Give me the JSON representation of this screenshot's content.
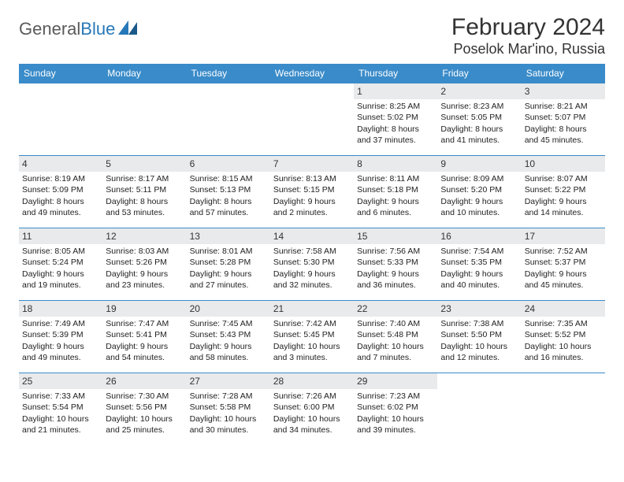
{
  "logo": {
    "word1": "General",
    "word2": "Blue"
  },
  "header": {
    "title": "February 2024",
    "location": "Poselok Mar'ino, Russia"
  },
  "colors": {
    "header_bg": "#3a8bc9",
    "header_text": "#ffffff",
    "daynum_bg": "#e9eaeb",
    "border": "#3a8bc9",
    "logo_gray": "#5a5a5a",
    "logo_blue": "#2778b8"
  },
  "weekdays": [
    "Sunday",
    "Monday",
    "Tuesday",
    "Wednesday",
    "Thursday",
    "Friday",
    "Saturday"
  ],
  "cells": [
    {
      "day": "",
      "sunrise": "",
      "sunset": "",
      "daylight": ""
    },
    {
      "day": "",
      "sunrise": "",
      "sunset": "",
      "daylight": ""
    },
    {
      "day": "",
      "sunrise": "",
      "sunset": "",
      "daylight": ""
    },
    {
      "day": "",
      "sunrise": "",
      "sunset": "",
      "daylight": ""
    },
    {
      "day": "1",
      "sunrise": "Sunrise: 8:25 AM",
      "sunset": "Sunset: 5:02 PM",
      "daylight": "Daylight: 8 hours and 37 minutes."
    },
    {
      "day": "2",
      "sunrise": "Sunrise: 8:23 AM",
      "sunset": "Sunset: 5:05 PM",
      "daylight": "Daylight: 8 hours and 41 minutes."
    },
    {
      "day": "3",
      "sunrise": "Sunrise: 8:21 AM",
      "sunset": "Sunset: 5:07 PM",
      "daylight": "Daylight: 8 hours and 45 minutes."
    },
    {
      "day": "4",
      "sunrise": "Sunrise: 8:19 AM",
      "sunset": "Sunset: 5:09 PM",
      "daylight": "Daylight: 8 hours and 49 minutes."
    },
    {
      "day": "5",
      "sunrise": "Sunrise: 8:17 AM",
      "sunset": "Sunset: 5:11 PM",
      "daylight": "Daylight: 8 hours and 53 minutes."
    },
    {
      "day": "6",
      "sunrise": "Sunrise: 8:15 AM",
      "sunset": "Sunset: 5:13 PM",
      "daylight": "Daylight: 8 hours and 57 minutes."
    },
    {
      "day": "7",
      "sunrise": "Sunrise: 8:13 AM",
      "sunset": "Sunset: 5:15 PM",
      "daylight": "Daylight: 9 hours and 2 minutes."
    },
    {
      "day": "8",
      "sunrise": "Sunrise: 8:11 AM",
      "sunset": "Sunset: 5:18 PM",
      "daylight": "Daylight: 9 hours and 6 minutes."
    },
    {
      "day": "9",
      "sunrise": "Sunrise: 8:09 AM",
      "sunset": "Sunset: 5:20 PM",
      "daylight": "Daylight: 9 hours and 10 minutes."
    },
    {
      "day": "10",
      "sunrise": "Sunrise: 8:07 AM",
      "sunset": "Sunset: 5:22 PM",
      "daylight": "Daylight: 9 hours and 14 minutes."
    },
    {
      "day": "11",
      "sunrise": "Sunrise: 8:05 AM",
      "sunset": "Sunset: 5:24 PM",
      "daylight": "Daylight: 9 hours and 19 minutes."
    },
    {
      "day": "12",
      "sunrise": "Sunrise: 8:03 AM",
      "sunset": "Sunset: 5:26 PM",
      "daylight": "Daylight: 9 hours and 23 minutes."
    },
    {
      "day": "13",
      "sunrise": "Sunrise: 8:01 AM",
      "sunset": "Sunset: 5:28 PM",
      "daylight": "Daylight: 9 hours and 27 minutes."
    },
    {
      "day": "14",
      "sunrise": "Sunrise: 7:58 AM",
      "sunset": "Sunset: 5:30 PM",
      "daylight": "Daylight: 9 hours and 32 minutes."
    },
    {
      "day": "15",
      "sunrise": "Sunrise: 7:56 AM",
      "sunset": "Sunset: 5:33 PM",
      "daylight": "Daylight: 9 hours and 36 minutes."
    },
    {
      "day": "16",
      "sunrise": "Sunrise: 7:54 AM",
      "sunset": "Sunset: 5:35 PM",
      "daylight": "Daylight: 9 hours and 40 minutes."
    },
    {
      "day": "17",
      "sunrise": "Sunrise: 7:52 AM",
      "sunset": "Sunset: 5:37 PM",
      "daylight": "Daylight: 9 hours and 45 minutes."
    },
    {
      "day": "18",
      "sunrise": "Sunrise: 7:49 AM",
      "sunset": "Sunset: 5:39 PM",
      "daylight": "Daylight: 9 hours and 49 minutes."
    },
    {
      "day": "19",
      "sunrise": "Sunrise: 7:47 AM",
      "sunset": "Sunset: 5:41 PM",
      "daylight": "Daylight: 9 hours and 54 minutes."
    },
    {
      "day": "20",
      "sunrise": "Sunrise: 7:45 AM",
      "sunset": "Sunset: 5:43 PM",
      "daylight": "Daylight: 9 hours and 58 minutes."
    },
    {
      "day": "21",
      "sunrise": "Sunrise: 7:42 AM",
      "sunset": "Sunset: 5:45 PM",
      "daylight": "Daylight: 10 hours and 3 minutes."
    },
    {
      "day": "22",
      "sunrise": "Sunrise: 7:40 AM",
      "sunset": "Sunset: 5:48 PM",
      "daylight": "Daylight: 10 hours and 7 minutes."
    },
    {
      "day": "23",
      "sunrise": "Sunrise: 7:38 AM",
      "sunset": "Sunset: 5:50 PM",
      "daylight": "Daylight: 10 hours and 12 minutes."
    },
    {
      "day": "24",
      "sunrise": "Sunrise: 7:35 AM",
      "sunset": "Sunset: 5:52 PM",
      "daylight": "Daylight: 10 hours and 16 minutes."
    },
    {
      "day": "25",
      "sunrise": "Sunrise: 7:33 AM",
      "sunset": "Sunset: 5:54 PM",
      "daylight": "Daylight: 10 hours and 21 minutes."
    },
    {
      "day": "26",
      "sunrise": "Sunrise: 7:30 AM",
      "sunset": "Sunset: 5:56 PM",
      "daylight": "Daylight: 10 hours and 25 minutes."
    },
    {
      "day": "27",
      "sunrise": "Sunrise: 7:28 AM",
      "sunset": "Sunset: 5:58 PM",
      "daylight": "Daylight: 10 hours and 30 minutes."
    },
    {
      "day": "28",
      "sunrise": "Sunrise: 7:26 AM",
      "sunset": "Sunset: 6:00 PM",
      "daylight": "Daylight: 10 hours and 34 minutes."
    },
    {
      "day": "29",
      "sunrise": "Sunrise: 7:23 AM",
      "sunset": "Sunset: 6:02 PM",
      "daylight": "Daylight: 10 hours and 39 minutes."
    },
    {
      "day": "",
      "sunrise": "",
      "sunset": "",
      "daylight": ""
    },
    {
      "day": "",
      "sunrise": "",
      "sunset": "",
      "daylight": ""
    }
  ]
}
